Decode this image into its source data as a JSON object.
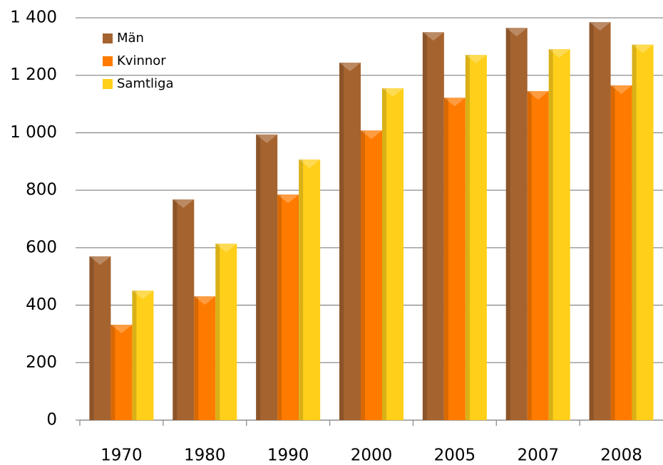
{
  "chart_data": {
    "type": "bar",
    "categories": [
      "1970",
      "1980",
      "1990",
      "2000",
      "2005",
      "2007",
      "2008"
    ],
    "series": [
      {
        "name": "Män",
        "color": "#a5632f",
        "values": [
          570,
          768,
          994,
          1244,
          1350,
          1365,
          1385
        ]
      },
      {
        "name": "Kvinnor",
        "color": "#ff7b00",
        "values": [
          332,
          431,
          785,
          1008,
          1122,
          1145,
          1165
        ]
      },
      {
        "name": "Samtliga",
        "color": "#ffcf1a",
        "values": [
          451,
          614,
          907,
          1155,
          1271,
          1291,
          1307
        ]
      }
    ],
    "ylim": [
      0,
      1400
    ],
    "yticks": [
      0,
      200,
      400,
      600,
      800,
      {
        "value": 1000,
        "label": "1 000"
      },
      {
        "value": 1200,
        "label": "1 200"
      },
      {
        "value": 1400,
        "label": "1 400"
      }
    ],
    "grid": true,
    "legend": "top-left"
  }
}
